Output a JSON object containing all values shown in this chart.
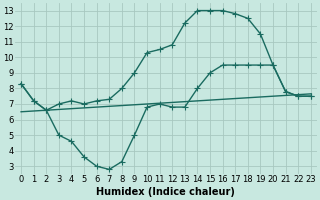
{
  "xlabel": "Humidex (Indice chaleur)",
  "background_color": "#c8e8e0",
  "grid_color": "#a8c8c0",
  "line_color": "#1a6b60",
  "xlim": [
    -0.5,
    23.5
  ],
  "ylim": [
    2.5,
    13.5
  ],
  "xticks": [
    0,
    1,
    2,
    3,
    4,
    5,
    6,
    7,
    8,
    9,
    10,
    11,
    12,
    13,
    14,
    15,
    16,
    17,
    18,
    19,
    20,
    21,
    22,
    23
  ],
  "yticks": [
    3,
    4,
    5,
    6,
    7,
    8,
    9,
    10,
    11,
    12,
    13
  ],
  "line_upper_x": [
    0,
    1,
    2,
    3,
    4,
    5,
    6,
    7,
    8,
    9,
    10,
    11,
    12,
    13,
    14,
    15,
    16,
    17,
    18,
    19,
    20,
    21,
    22,
    23
  ],
  "line_upper_y": [
    8.3,
    7.2,
    6.6,
    7.0,
    7.2,
    7.0,
    7.2,
    7.3,
    8.0,
    9.0,
    10.3,
    10.5,
    10.8,
    12.2,
    13.0,
    13.0,
    13.0,
    12.8,
    12.5,
    11.5,
    9.5,
    7.8,
    7.5,
    7.5
  ],
  "line_lower_x": [
    0,
    1,
    2,
    3,
    4,
    5,
    6,
    7,
    8,
    9,
    10,
    11,
    12,
    13,
    14,
    15,
    16,
    17,
    18,
    19,
    20,
    21,
    22,
    23
  ],
  "line_lower_y": [
    8.3,
    7.2,
    6.6,
    5.0,
    4.6,
    3.6,
    3.0,
    2.8,
    3.3,
    5.0,
    6.8,
    7.0,
    6.8,
    6.8,
    8.0,
    9.0,
    9.5,
    9.5,
    9.5,
    9.5,
    9.5,
    7.8,
    7.5,
    7.5
  ],
  "line_diag_x": [
    0,
    1,
    2,
    3,
    4,
    5,
    6,
    7,
    8,
    9,
    10,
    11,
    12,
    13,
    14,
    15,
    16,
    17,
    18,
    19,
    20,
    21,
    22,
    23
  ],
  "line_diag_y": [
    6.5,
    6.55,
    6.6,
    6.65,
    6.7,
    6.75,
    6.8,
    6.85,
    6.9,
    6.95,
    7.0,
    7.05,
    7.1,
    7.15,
    7.2,
    7.25,
    7.3,
    7.35,
    7.4,
    7.45,
    7.5,
    7.55,
    7.6,
    7.65
  ],
  "marker": "+",
  "markersize": 4,
  "linewidth": 1.0,
  "xlabel_fontsize": 7,
  "tick_fontsize": 6
}
